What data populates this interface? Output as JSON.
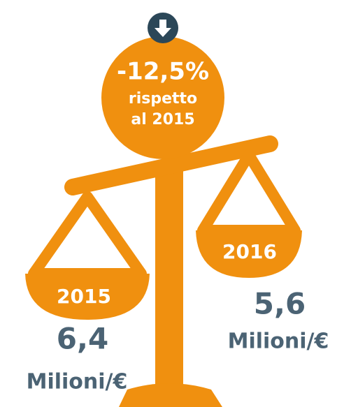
{
  "badge": {
    "change": "-12,5%",
    "line1": "rispetto",
    "line2": "al 2015"
  },
  "left": {
    "year": "2015",
    "value": "6,4",
    "unit": "Milioni/€"
  },
  "right": {
    "year": "2016",
    "value": "5,6",
    "unit": "Milioni/€"
  }
}
